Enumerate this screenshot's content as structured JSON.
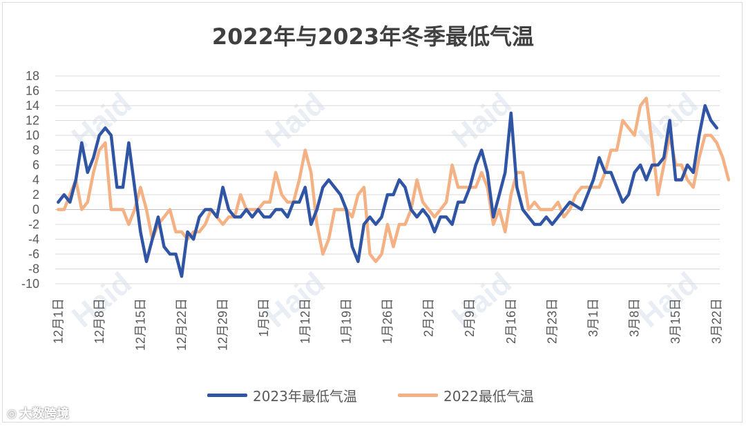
{
  "chart_data": {
    "type": "line",
    "title": "2022年与2023年冬季最低气温",
    "ylim": [
      -10,
      18
    ],
    "yticks": [
      "18",
      "16",
      "14",
      "12",
      "10",
      "8",
      "6",
      "4",
      "2",
      "0",
      "-2",
      "-4",
      "-6",
      "-8",
      "-10"
    ],
    "x_tick_labels": [
      "12月1日",
      "12月8日",
      "12月15日",
      "12月22日",
      "12月29日",
      "1月5日",
      "1月12日",
      "1月19日",
      "1月26日",
      "2月2日",
      "2月9日",
      "2月16日",
      "2月23日",
      "3月1日",
      "3月8日",
      "3月15日",
      "3月22日"
    ],
    "grid": true,
    "legend_position": "bottom",
    "series": [
      {
        "name": "2023年最低气温",
        "color": "#2f55a4",
        "values": [
          1,
          2,
          1,
          4,
          9,
          5,
          7,
          10,
          11,
          10,
          3,
          3,
          9,
          3,
          -3,
          -7,
          -4,
          -1,
          -5,
          -6,
          -6,
          -9,
          -3,
          -4,
          -1,
          0,
          0,
          -1,
          3,
          0,
          -1,
          -1,
          0,
          -1,
          0,
          -1,
          -1,
          0,
          0,
          -1,
          1,
          1,
          3,
          -2,
          0,
          3,
          4,
          3,
          2,
          0,
          -5,
          -7,
          -2,
          -1,
          -2,
          -1,
          2,
          2,
          4,
          3,
          0,
          -1,
          0,
          -1,
          -3,
          -1,
          -1,
          -2,
          1,
          1,
          3,
          6,
          8,
          5,
          -1,
          2,
          5,
          13,
          3,
          0,
          -1,
          -2,
          -2,
          -1,
          -2,
          -1,
          0,
          1,
          0.5,
          0,
          2,
          4,
          7,
          5,
          5,
          3,
          1,
          2,
          5,
          6,
          4,
          6,
          6,
          7,
          12,
          4,
          4,
          6,
          5,
          10,
          14,
          12,
          11
        ]
      },
      {
        "name": "2022最低气温",
        "color": "#f4b183",
        "values": [
          0,
          0,
          2,
          4,
          0,
          1,
          5,
          8,
          9,
          0,
          0,
          0,
          -2,
          0,
          3,
          0,
          -4,
          -2,
          -1,
          0,
          -3,
          -3,
          -4,
          -3,
          -3,
          -2,
          0,
          -1,
          -2,
          -1,
          -1,
          2,
          0,
          0,
          0,
          1,
          1,
          5,
          2,
          1,
          1,
          4,
          8,
          5,
          -2,
          -6,
          -4,
          0,
          0,
          0,
          -1,
          2,
          3,
          -6,
          -7,
          -6,
          -2,
          -5,
          -2,
          -2,
          0,
          4,
          1,
          0,
          -1,
          0,
          1,
          6,
          3,
          3,
          3,
          3,
          5,
          3,
          -2,
          0,
          -3,
          2,
          5,
          5,
          0,
          1,
          0,
          0,
          0,
          1,
          -1,
          0,
          2,
          3,
          3,
          3,
          3,
          5,
          8,
          8,
          12,
          11,
          10,
          14,
          15,
          9,
          2,
          6,
          10,
          6,
          6,
          4,
          3,
          7,
          10,
          10,
          9,
          7,
          4
        ]
      }
    ]
  },
  "watermark": {
    "brand": "Haid",
    "site_label": "大数跨境"
  }
}
